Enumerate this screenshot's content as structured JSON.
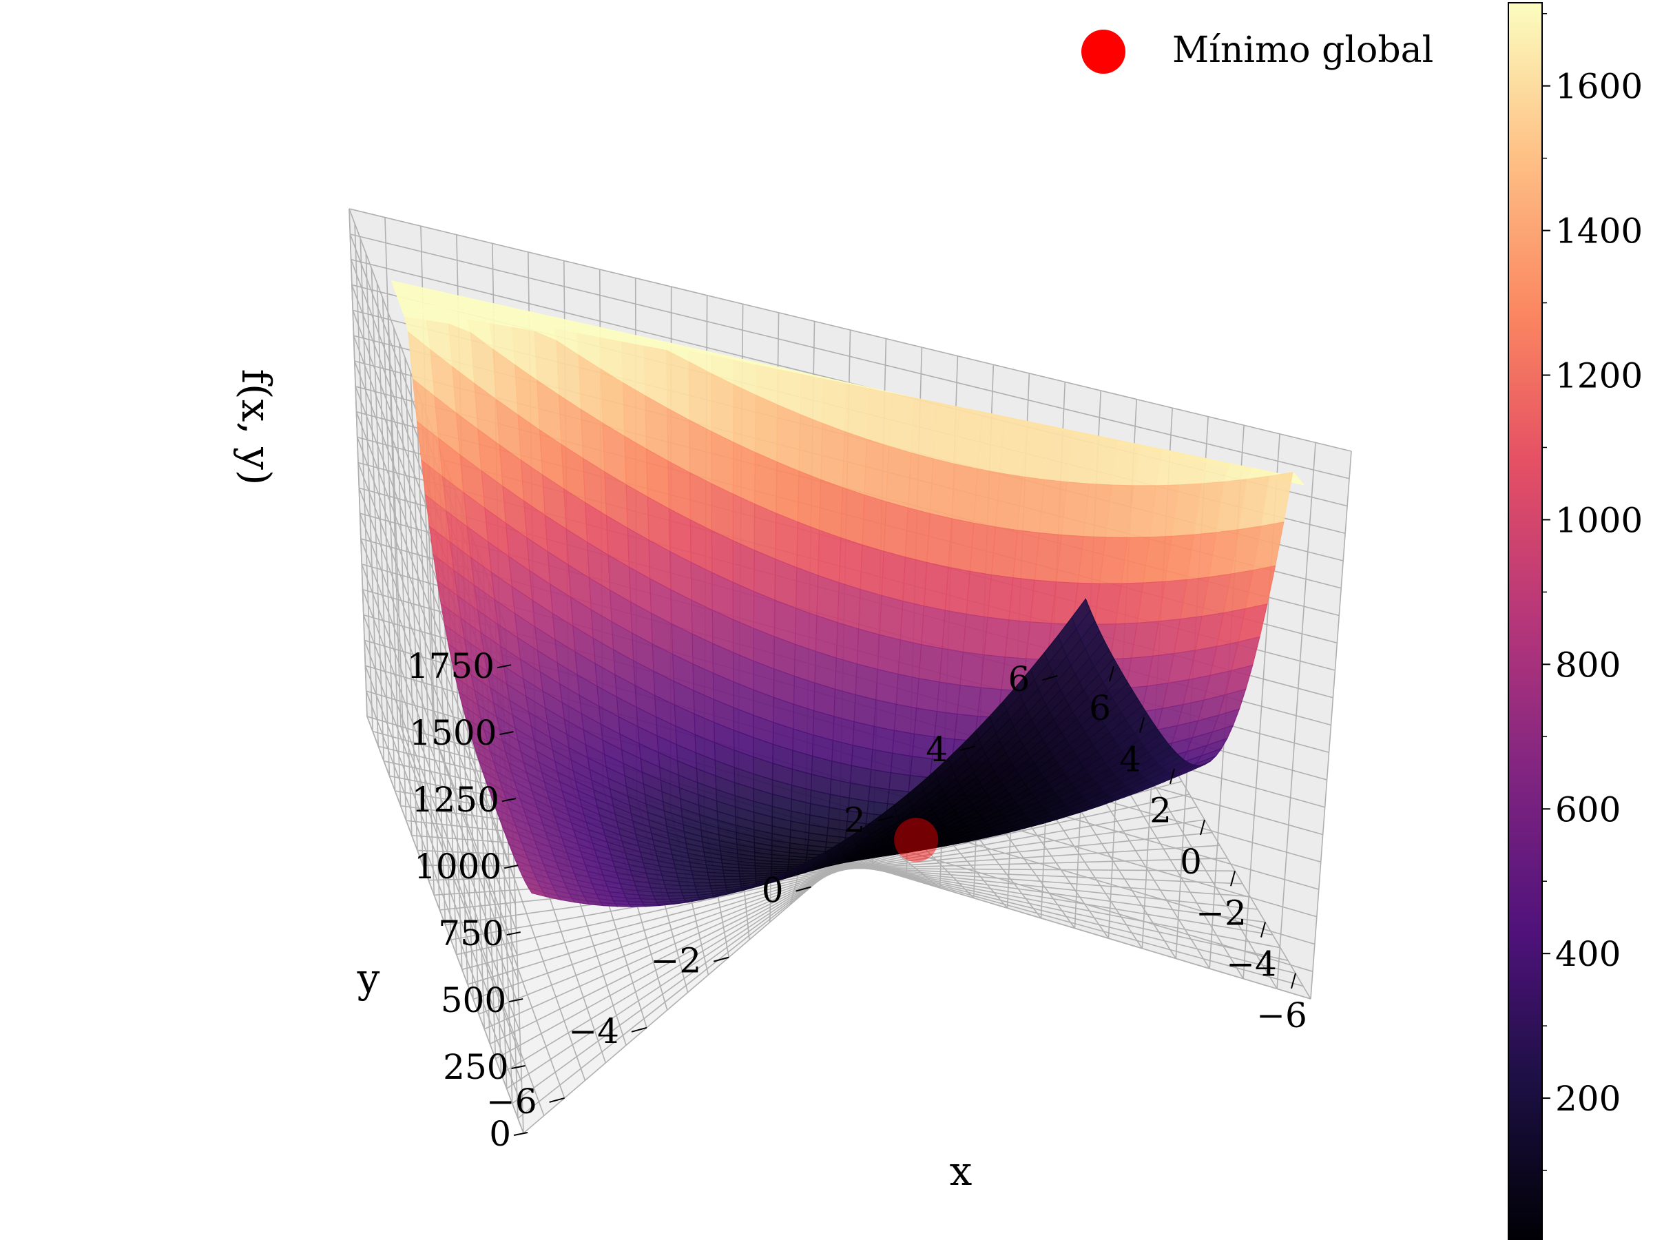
{
  "chart_data": {
    "type": "surface3d",
    "function_label": "f(x, y)",
    "xlabel": "x",
    "ylabel": "y",
    "zlabel": "f(x, y)",
    "xlim": [
      -7,
      7
    ],
    "ylim": [
      -7,
      7
    ],
    "zlim": [
      0,
      1900
    ],
    "x_ticks": [
      6,
      4,
      2,
      0,
      -2,
      -4,
      -6
    ],
    "x_tick_labels": [
      "6",
      "4",
      "2",
      "0",
      "−2",
      "−4",
      "−6"
    ],
    "y_ticks": [
      -6,
      -4,
      -2,
      0,
      2,
      4,
      6
    ],
    "y_tick_labels": [
      "−6",
      "−4",
      "−2",
      "0",
      "2",
      "4",
      "6"
    ],
    "z_ticks": [
      0,
      250,
      500,
      750,
      1000,
      1250,
      1500,
      1750
    ],
    "z_tick_labels": [
      "0",
      "250",
      "500",
      "750",
      "1000",
      "1250",
      "1500",
      "1750"
    ],
    "colormap": "magma",
    "colorbar": {
      "range": [
        0,
        1715
      ],
      "ticks": [
        200,
        400,
        600,
        800,
        1000,
        1200,
        1400,
        1600
      ],
      "tick_labels": [
        "200",
        "400",
        "600",
        "800",
        "1000",
        "1200",
        "1400",
        "1600"
      ]
    },
    "surface_max": 1715,
    "minimum_point": {
      "x": 3,
      "y": 2,
      "z": 0,
      "color": "#ff0000"
    },
    "legend": {
      "label": "Mínimo global",
      "marker_color": "#ff0000",
      "placement": "top-right"
    },
    "grid": true
  }
}
